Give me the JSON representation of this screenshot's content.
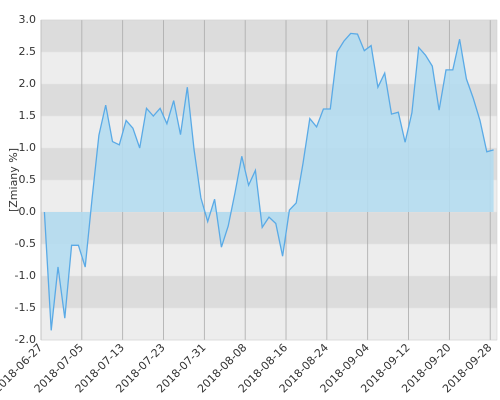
{
  "chart_data": {
    "type": "area",
    "y_label": "[Zmiany %]",
    "categories": [
      "2018-06-27",
      null,
      null,
      null,
      null,
      null,
      "2018-07-05",
      null,
      null,
      null,
      null,
      null,
      "2018-07-13",
      null,
      null,
      null,
      null,
      null,
      "2018-07-23",
      null,
      null,
      null,
      null,
      null,
      "2018-07-31",
      null,
      null,
      null,
      null,
      null,
      "2018-08-08",
      null,
      null,
      null,
      null,
      null,
      "2018-08-16",
      null,
      null,
      null,
      null,
      null,
      "2018-08-24",
      null,
      null,
      null,
      null,
      null,
      "2018-09-04",
      null,
      null,
      null,
      null,
      null,
      "2018-09-12",
      null,
      null,
      null,
      null,
      null,
      "2018-09-20",
      null,
      null,
      null,
      null,
      null,
      "2018-09-28"
    ],
    "values": [
      0.0,
      -1.85,
      -0.86,
      -1.66,
      -0.52,
      -0.52,
      -0.86,
      0.2,
      1.2,
      1.67,
      1.1,
      1.05,
      1.43,
      1.31,
      1.0,
      1.62,
      1.5,
      1.62,
      1.38,
      1.74,
      1.21,
      1.95,
      0.97,
      0.22,
      -0.15,
      0.2,
      -0.55,
      -0.22,
      0.3,
      0.87,
      0.42,
      0.65,
      -0.24,
      -0.08,
      -0.18,
      -0.69,
      0.03,
      0.14,
      0.76,
      1.46,
      1.33,
      1.61,
      1.61,
      2.5,
      2.67,
      2.79,
      2.78,
      2.52,
      2.6,
      1.95,
      2.17,
      1.53,
      1.56,
      1.09,
      1.55,
      2.57,
      2.45,
      2.28,
      1.59,
      2.22,
      2.22,
      2.7,
      2.08,
      1.78,
      1.43,
      0.94,
      0.97
    ],
    "color": "#5aaae6",
    "area_color": "#b4dcf0",
    "ylim": [
      -2,
      3
    ],
    "yticks": [
      {
        "value": -2,
        "label": "-2.0"
      },
      {
        "value": -1.5,
        "label": "-1.5"
      },
      {
        "value": -1,
        "label": "-1.0"
      },
      {
        "value": -0.5,
        "label": "-0.5"
      },
      {
        "value": 0,
        "label": "0.0"
      },
      {
        "value": 0.5,
        "label": "0.5"
      },
      {
        "value": 1,
        "label": "1.0"
      },
      {
        "value": 1.5,
        "label": "1.5"
      },
      {
        "value": 2,
        "label": "2.0"
      },
      {
        "value": 2.5,
        "label": "2.5"
      },
      {
        "value": 3,
        "label": "3.0"
      }
    ],
    "grid": true
  }
}
